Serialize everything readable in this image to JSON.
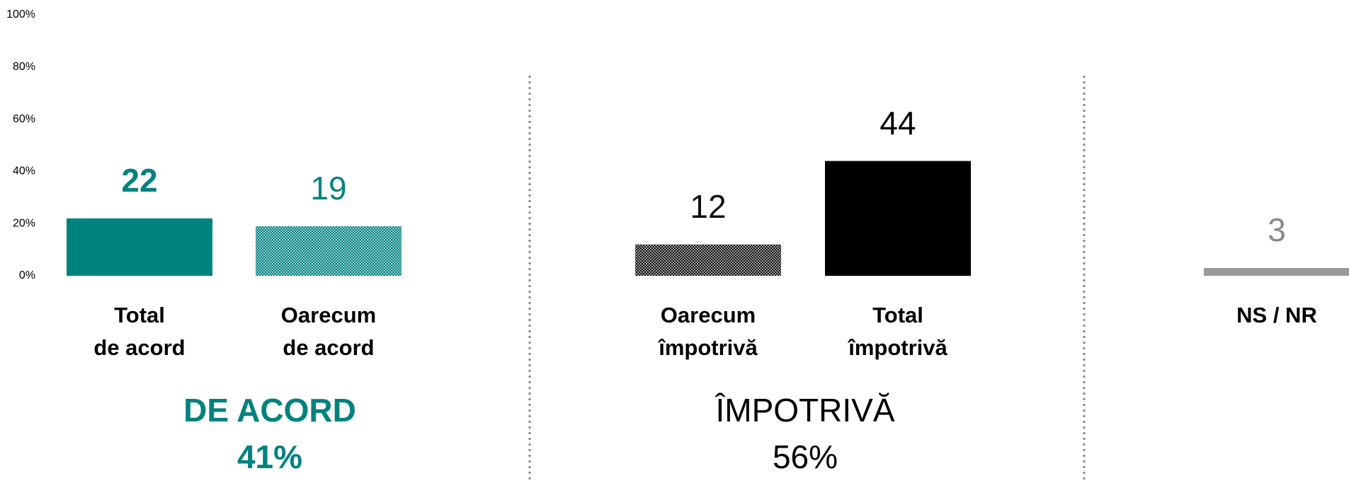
{
  "chart_data": {
    "type": "bar",
    "categories": [
      "Total\nde acord",
      "Oarecum\nde acord",
      "Oarecum\nîmpotrivă",
      "Total\nîmpotrivă",
      "NS / NR"
    ],
    "values": [
      22,
      19,
      12,
      44,
      3
    ],
    "colors": [
      "#00827f",
      "#00827f",
      "#111111",
      "#000000",
      "#999999"
    ],
    "patterned": [
      false,
      true,
      true,
      false,
      false
    ],
    "ylim": [
      0,
      100
    ],
    "yticks": [
      {
        "value": 0,
        "label": "0%"
      },
      {
        "value": 20,
        "label": "20%"
      },
      {
        "value": 40,
        "label": "40%"
      },
      {
        "value": 60,
        "label": "60%"
      },
      {
        "value": 80,
        "label": "80%"
      },
      {
        "value": 100,
        "label": "100%"
      }
    ],
    "groups": [
      {
        "name": "DE ACORD",
        "total": "41%",
        "color": "#00827f"
      },
      {
        "name": "ÎMPOTRIVĂ",
        "total": "56%",
        "color": "#000000"
      }
    ]
  }
}
